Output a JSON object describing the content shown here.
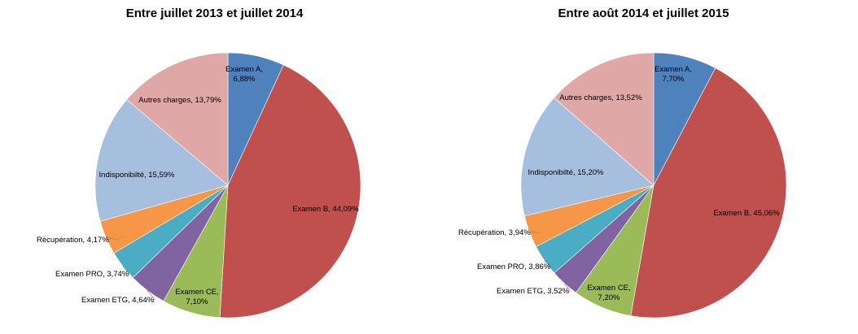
{
  "colors": {
    "examen_a": "#4F81BD",
    "examen_b": "#C0504D",
    "examen_ce": "#9BBB59",
    "examen_etg": "#8064A2",
    "examen_pro": "#4BACC6",
    "recuperation": "#F79646",
    "indisponibilite": "#A7BFDE",
    "autres_charges": "#DFA7A6"
  },
  "chart_data": [
    {
      "type": "pie",
      "title": "Entre juillet 2013 et juillet 2014",
      "slices": [
        {
          "label": "Examen A",
          "value": 6.88,
          "display": [
            "Examen A,",
            "6,88%"
          ],
          "color": "#4F81BD"
        },
        {
          "label": "Examen B",
          "value": 44.09,
          "display": [
            "Examen B, 44,09%"
          ],
          "color": "#C0504D"
        },
        {
          "label": "Examen CE",
          "value": 7.1,
          "display": [
            "Examen CE,",
            "7,10%"
          ],
          "color": "#9BBB59"
        },
        {
          "label": "Examen ETG",
          "value": 4.64,
          "display": [
            "Examen ETG, 4,64%"
          ],
          "color": "#8064A2"
        },
        {
          "label": "Examen PRO",
          "value": 3.74,
          "display": [
            "Examen PRO, 3,74%"
          ],
          "color": "#4BACC6"
        },
        {
          "label": "Récupération",
          "value": 4.17,
          "display": [
            "Récupération, 4,17%"
          ],
          "color": "#F79646"
        },
        {
          "label": "Indisponibilté",
          "value": 15.59,
          "display": [
            "Indisponibilté, 15,59%"
          ],
          "color": "#A7BFDE"
        },
        {
          "label": "Autres charges",
          "value": 13.79,
          "display": [
            "Autres charges, 13,79%"
          ],
          "color": "#DFA7A6"
        }
      ]
    },
    {
      "type": "pie",
      "title": "Entre août 2014 et juillet 2015",
      "slices": [
        {
          "label": "Examen A",
          "value": 7.7,
          "display": [
            "Examen A,",
            "7,70%"
          ],
          "color": "#4F81BD"
        },
        {
          "label": "Examen B",
          "value": 45.06,
          "display": [
            "Examen B, 45,06%"
          ],
          "color": "#C0504D"
        },
        {
          "label": "Examen CE",
          "value": 7.2,
          "display": [
            "Examen CE,",
            "7,20%"
          ],
          "color": "#9BBB59"
        },
        {
          "label": "Examen ETG",
          "value": 3.52,
          "display": [
            "Examen ETG, 3,52%"
          ],
          "color": "#8064A2"
        },
        {
          "label": "Examen PRO",
          "value": 3.86,
          "display": [
            "Examen PRO, 3,86%"
          ],
          "color": "#4BACC6"
        },
        {
          "label": "Récupération",
          "value": 3.94,
          "display": [
            "Récupération, 3,94%"
          ],
          "color": "#F79646"
        },
        {
          "label": "Indisponibilté",
          "value": 15.2,
          "display": [
            "Indisponibilté, 15,20%"
          ],
          "color": "#A7BFDE"
        },
        {
          "label": "Autres charges",
          "value": 13.52,
          "display": [
            "Autres charges, 13,52%"
          ],
          "color": "#DFA7A6"
        }
      ]
    }
  ]
}
